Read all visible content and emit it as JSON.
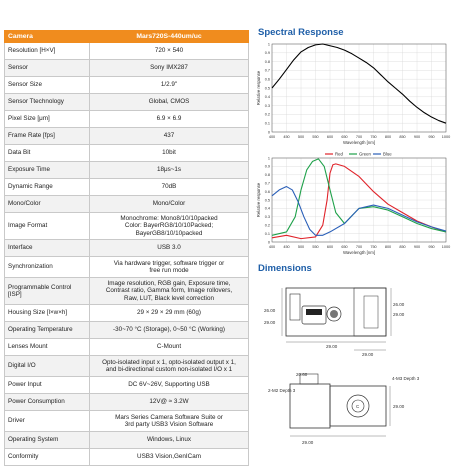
{
  "spec_table": {
    "header": [
      "Camera",
      "Mars720S-440um/uc"
    ],
    "rows": [
      [
        "Resolution [H×V]",
        "720 × 540"
      ],
      [
        "Sensor",
        "Sony IMX287"
      ],
      [
        "Sensor Size",
        "1/2.9\""
      ],
      [
        "Sensor Ttechnology",
        "Global, CMOS"
      ],
      [
        "Pixel Size [μm]",
        "6.9 × 6.9"
      ],
      [
        "Frame Rate [fps]",
        "437"
      ],
      [
        "Data Bit",
        "10bit"
      ],
      [
        "Exposure Time",
        "18μs~1s"
      ],
      [
        "Dynamic Range",
        "70dB"
      ],
      [
        "Mono/Color",
        "Mono/Color"
      ],
      [
        "Image Format",
        [
          "Monochrome:  Mono8/10/10packed",
          "Color:  BayerRG8/10/10Packed;",
          "BayerGB8/10/10packed"
        ]
      ],
      [
        "Interface",
        "USB 3.0"
      ],
      [
        "Synchronization",
        [
          "Via hardware trigger, software trigger or",
          "free run mode"
        ]
      ],
      [
        "Programmable Control [ISP]",
        [
          "Image resolution,  RGB gain,  Exposure time,",
          "Contrast ratio,  Gamma form,  Image rollovers,",
          "Raw,   LUT,  Black level correction"
        ]
      ],
      [
        "Housing Size [l×w×h]",
        "29 × 29 × 29 mm (60g)"
      ],
      [
        "Operating Temperature",
        "-30~70 °C (Storage), 0~50 °C (Working)"
      ],
      [
        "Lenses Mount",
        "C-Mount"
      ],
      [
        "Digital I/O",
        [
          "Opto-isolated input x 1, opto-isolated output x 1,",
          "and bi-directional custom non-isolated I/O x 1"
        ]
      ],
      [
        "Power Input",
        "DC 6V~26V, Supporting USB"
      ],
      [
        "Power Consumption",
        "12V@ ≈ 3.2W"
      ],
      [
        "Driver",
        [
          "Mars Series Camera Software Suite or",
          "3rd party USB3 Vision Software"
        ]
      ],
      [
        "Operating System",
        "Windows, Linux"
      ],
      [
        "Conformity",
        "USB3 Vision,GenICam"
      ]
    ]
  },
  "spectral": {
    "title": "Spectral Response",
    "mono": {
      "ylabel": "Relative response",
      "xlabel": "Wavelength [nm]",
      "x_ticks": [
        "400",
        "450",
        "500",
        "550",
        "600",
        "650",
        "700",
        "750",
        "800",
        "850",
        "900",
        "950",
        "1000"
      ],
      "y_ticks": [
        "1",
        "0.9",
        "0.8",
        "0.7",
        "0.6",
        "0.5",
        "0.4",
        "0.3",
        "0.2",
        "0.1",
        "0"
      ]
    },
    "color": {
      "ylabel": "Relative response",
      "xlabel": "Wavelength [nm]",
      "x_ticks": [
        "400",
        "450",
        "500",
        "550",
        "600",
        "650",
        "700",
        "750",
        "800",
        "850",
        "900",
        "950",
        "1000"
      ],
      "y_ticks": [
        "1",
        "0.9",
        "0.8",
        "0.7",
        "0.6",
        "0.5",
        "0.4",
        "0.3",
        "0.2",
        "0.1",
        "0"
      ],
      "legend": [
        "Red",
        "Green",
        "Blue"
      ]
    }
  },
  "dimensions": {
    "title": "Dimensions",
    "labels": [
      "29.00",
      "26.00",
      "29.00",
      "29.00",
      "29.00",
      "26.00",
      "20.60",
      "2-M2 Depth 3",
      "4-M3 Depth 3",
      "C",
      "29.00",
      "29.00"
    ]
  },
  "chart_data": [
    {
      "type": "line",
      "title": "",
      "xlabel": "Wavelength [nm]",
      "ylabel": "Relative response",
      "xlim": [
        400,
        1000
      ],
      "ylim": [
        0,
        1
      ],
      "series": [
        {
          "color": "#000000",
          "x": [
            400,
            425,
            450,
            475,
            500,
            525,
            550,
            575,
            600,
            625,
            650,
            675,
            700,
            725,
            750,
            775,
            800,
            825,
            850,
            875,
            900,
            925,
            950,
            975,
            1000
          ],
          "values": [
            0.5,
            0.6,
            0.71,
            0.82,
            0.91,
            0.96,
            0.99,
            1.0,
            0.98,
            0.96,
            0.93,
            0.89,
            0.84,
            0.79,
            0.73,
            0.65,
            0.57,
            0.5,
            0.43,
            0.35,
            0.28,
            0.22,
            0.17,
            0.13,
            0.1
          ]
        }
      ]
    },
    {
      "type": "line",
      "title": "",
      "xlabel": "Wavelength [nm]",
      "ylabel": "Relative response",
      "xlim": [
        400,
        1000
      ],
      "ylim": [
        0,
        1
      ],
      "series": [
        {
          "name": "Red",
          "color": "#e0232a",
          "x": [
            400,
            450,
            500,
            550,
            575,
            590,
            600,
            610,
            620,
            650,
            700,
            750,
            800,
            850,
            900,
            950,
            1000
          ],
          "values": [
            0.05,
            0.08,
            0.04,
            0.06,
            0.2,
            0.5,
            0.82,
            0.92,
            0.93,
            0.9,
            0.78,
            0.6,
            0.45,
            0.35,
            0.25,
            0.18,
            0.12
          ]
        },
        {
          "name": "Green",
          "color": "#1fa14a",
          "x": [
            400,
            450,
            480,
            500,
            520,
            540,
            560,
            580,
            600,
            620,
            650,
            700,
            750,
            800,
            850,
            900,
            950,
            1000
          ],
          "values": [
            0.08,
            0.12,
            0.3,
            0.62,
            0.86,
            0.96,
            0.99,
            0.9,
            0.62,
            0.35,
            0.22,
            0.4,
            0.42,
            0.38,
            0.3,
            0.22,
            0.16,
            0.12
          ]
        },
        {
          "name": "Blue",
          "color": "#2a5fb8",
          "x": [
            400,
            425,
            450,
            470,
            490,
            510,
            530,
            550,
            575,
            600,
            650,
            700,
            750,
            800,
            850,
            900,
            950,
            1000
          ],
          "values": [
            0.55,
            0.62,
            0.66,
            0.62,
            0.48,
            0.3,
            0.15,
            0.08,
            0.08,
            0.12,
            0.22,
            0.4,
            0.44,
            0.4,
            0.32,
            0.24,
            0.18,
            0.13
          ]
        }
      ]
    }
  ]
}
